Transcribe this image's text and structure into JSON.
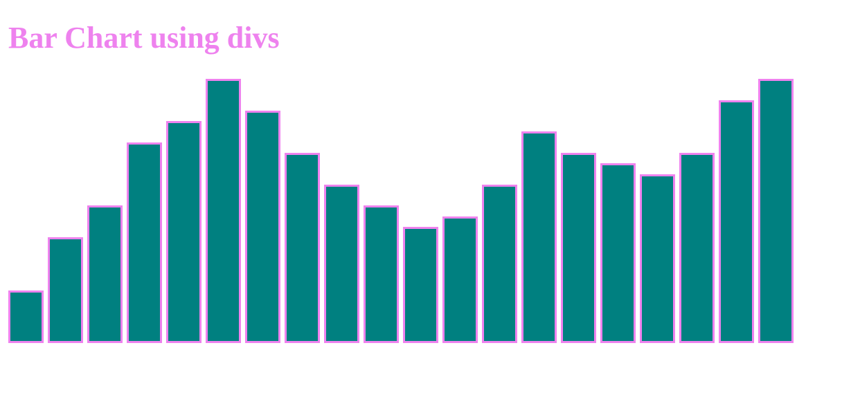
{
  "page": {
    "title": "Bar Chart using divs"
  },
  "colors": {
    "title": "#ee82ee",
    "bar_fill": "#008080",
    "bar_border": "#ee82ee",
    "background": "#ffffff"
  },
  "chart_data": {
    "type": "bar",
    "title": "Bar Chart using divs",
    "xlabel": "",
    "ylabel": "",
    "grid": false,
    "values": [
      5,
      10,
      13,
      19,
      21,
      25,
      22,
      18,
      15,
      13,
      11,
      12,
      15,
      20,
      18,
      17,
      16,
      18,
      23,
      25
    ]
  }
}
